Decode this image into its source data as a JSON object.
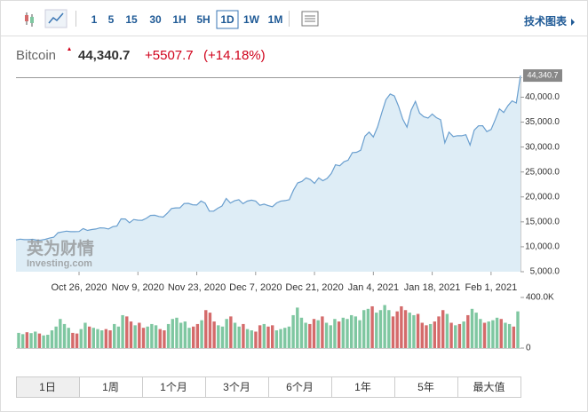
{
  "toolbar": {
    "intervals": [
      "1",
      "5",
      "15",
      "30",
      "1H",
      "5H",
      "1D",
      "1W",
      "1M"
    ],
    "selected": 6,
    "technical_chart": "技术图表"
  },
  "header": {
    "name": "Bitcoin",
    "price": "44,340.7",
    "change": "+5507.7",
    "change_percent": "(+14.18%)"
  },
  "watermark": {
    "cn": "英为财情",
    "en": "Investing.com"
  },
  "chart_data": [
    {
      "type": "area",
      "color": "#6a9fcf",
      "fill": "#deedf6",
      "categories": [
        null,
        null,
        null,
        null,
        null,
        null,
        null,
        null,
        null,
        null,
        null,
        null,
        null,
        null,
        null,
        "Oct 26, 2020",
        null,
        null,
        null,
        null,
        null,
        null,
        null,
        null,
        null,
        null,
        null,
        null,
        null,
        "Nov 9, 2020",
        null,
        null,
        null,
        null,
        null,
        null,
        null,
        null,
        null,
        null,
        null,
        null,
        null,
        "Nov 23, 2020",
        null,
        null,
        null,
        null,
        null,
        null,
        null,
        null,
        null,
        null,
        null,
        null,
        null,
        "Dec 7, 2020",
        null,
        null,
        null,
        null,
        null,
        null,
        null,
        null,
        null,
        null,
        null,
        null,
        null,
        "Dec 21, 2020",
        null,
        null,
        null,
        null,
        null,
        null,
        null,
        null,
        null,
        null,
        null,
        null,
        null,
        "Jan 4, 2021",
        null,
        null,
        null,
        null,
        null,
        null,
        null,
        null,
        null,
        null,
        null,
        null,
        null,
        "Jan 18, 2021",
        null,
        null,
        null,
        null,
        null,
        null,
        null,
        null,
        null,
        null,
        null,
        null,
        null,
        "Feb 1, 2021",
        null,
        null,
        null,
        null,
        null,
        null,
        null
      ],
      "values": [
        11380,
        11530,
        11430,
        11430,
        11500,
        11320,
        11360,
        11500,
        11750,
        11920,
        12820,
        12980,
        13130,
        13040,
        13030,
        13070,
        13650,
        13280,
        13460,
        13560,
        13800,
        13760,
        13560,
        14030,
        14150,
        15590,
        15580,
        14830,
        15480,
        15330,
        15310,
        15700,
        16290,
        16330,
        16070,
        15960,
        16730,
        17680,
        17800,
        17820,
        18680,
        18710,
        18420,
        18380,
        19170,
        18740,
        17150,
        17140,
        17730,
        18180,
        19700,
        18790,
        19230,
        19450,
        18650,
        19150,
        19360,
        19170,
        18320,
        18550,
        18250,
        18040,
        18800,
        19170,
        19270,
        19440,
        21350,
        22800,
        23110,
        23830,
        23480,
        22720,
        23820,
        23250,
        23720,
        24690,
        26440,
        26240,
        27040,
        27370,
        28880,
        28950,
        29370,
        32190,
        33000,
        32030,
        34050,
        36860,
        39490,
        40630,
        40250,
        38190,
        35570,
        34000,
        37390,
        39150,
        36800,
        36070,
        35800,
        36630,
        35890,
        35470,
        30850,
        33000,
        32100,
        32280,
        32260,
        32470,
        30390,
        33380,
        34260,
        34270,
        33110,
        33520,
        35510,
        37660,
        36930,
        38290,
        39260,
        38833,
        44340.7
      ],
      "ylim": [
        5000,
        44000
      ],
      "yticks": [
        {
          "value": 5000,
          "label": "5,000.0"
        },
        {
          "value": 10000,
          "label": "10,000.0"
        },
        {
          "value": 15000,
          "label": "15,000.0"
        },
        {
          "value": 20000,
          "label": "20,000.0"
        },
        {
          "value": 25000,
          "label": "25,000.0"
        },
        {
          "value": 30000,
          "label": "30,000.0"
        },
        {
          "value": 35000,
          "label": "35,000.0"
        },
        {
          "value": 40000,
          "label": "40,000.0"
        }
      ]
    },
    {
      "type": "bar",
      "up_color": "#7fc7a1",
      "down_color": "#d46b6b",
      "values": [
        120000,
        110000,
        125000,
        118000,
        130000,
        115000,
        100000,
        105000,
        140000,
        170000,
        230000,
        190000,
        160000,
        120000,
        115000,
        150000,
        200000,
        170000,
        160000,
        150000,
        140000,
        150000,
        140000,
        190000,
        170000,
        260000,
        250000,
        210000,
        180000,
        200000,
        160000,
        170000,
        190000,
        180000,
        150000,
        140000,
        190000,
        230000,
        240000,
        200000,
        210000,
        160000,
        170000,
        190000,
        220000,
        300000,
        280000,
        210000,
        180000,
        170000,
        230000,
        250000,
        200000,
        170000,
        190000,
        150000,
        140000,
        130000,
        180000,
        190000,
        170000,
        180000,
        140000,
        150000,
        160000,
        170000,
        260000,
        320000,
        240000,
        200000,
        190000,
        230000,
        220000,
        250000,
        200000,
        180000,
        230000,
        210000,
        240000,
        230000,
        260000,
        250000,
        220000,
        300000,
        310000,
        330000,
        280000,
        300000,
        340000,
        300000,
        250000,
        290000,
        330000,
        300000,
        280000,
        260000,
        270000,
        200000,
        180000,
        190000,
        210000,
        250000,
        300000,
        270000,
        200000,
        180000,
        190000,
        210000,
        260000,
        310000,
        280000,
        230000,
        200000,
        210000,
        220000,
        240000,
        230000,
        200000,
        190000,
        170000,
        290000
      ],
      "ylim": [
        0,
        400000
      ],
      "yticks": [
        0,
        {
          "value": 400000,
          "label": "400.0K"
        }
      ]
    }
  ],
  "ranges": {
    "labels": [
      "1日",
      "1周",
      "1个月",
      "3个月",
      "6个月",
      "1年",
      "5年",
      "最大值"
    ],
    "selected": 0
  }
}
